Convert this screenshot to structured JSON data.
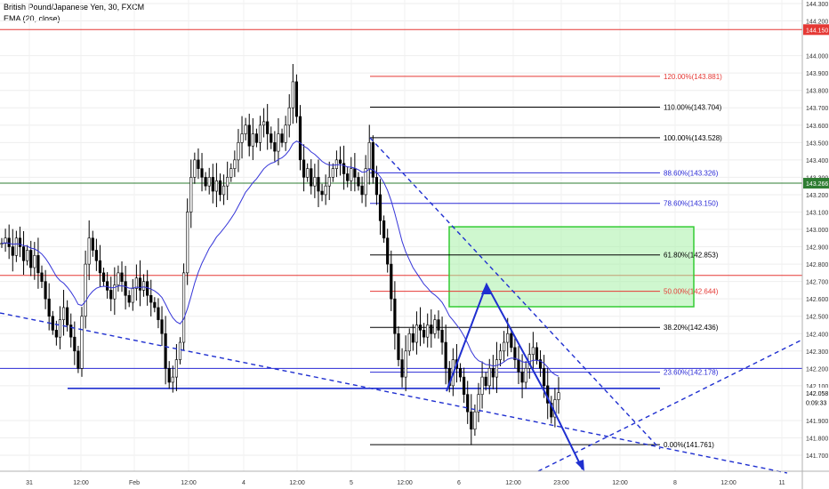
{
  "header": {
    "symbol_title": "British Pound/Japanese Yen, 30, FXCM",
    "indicator_label": "EMA (20, close)"
  },
  "colors": {
    "up_candle": "#ffffff",
    "candle_outline": "#000000",
    "ema": "#3535d8",
    "fib_red": "#e53935",
    "fib_black": "#000000",
    "fib_blue": "#2b2bd6",
    "resistance_red": "#e53935",
    "support_green": "#2e7d32",
    "target_box_fill": "#a8f0a8",
    "target_box_stroke": "#33cc33",
    "trend_blue": "#1f2fd0",
    "price_tag_red": "#e53935",
    "price_tag_green": "#2e7d32"
  },
  "chart_data": {
    "type": "candlestick",
    "title": "British Pound/Japanese Yen, 30, FXCM",
    "indicator": "EMA (20, close)",
    "ylim": [
      141.65,
      144.32
    ],
    "y_ticks": [
      "144.300",
      "144.200",
      "144.000",
      "143.900",
      "143.800",
      "143.700",
      "143.600",
      "143.500",
      "143.400",
      "143.300",
      "143.200",
      "143.100",
      "143.000",
      "142.900",
      "142.800",
      "142.700",
      "142.600",
      "142.500",
      "142.400",
      "142.300",
      "142.200",
      "142.100",
      "141.900",
      "141.800",
      "141.700"
    ],
    "x_ticks": [
      "31",
      "12:00",
      "Feb",
      "12:00",
      "4",
      "12:00",
      "5",
      "12:00",
      "6",
      "12:00",
      "23:00",
      "12:00",
      "8",
      "12:00",
      "11"
    ],
    "price_tags": [
      {
        "label": "144.150",
        "value": 144.15,
        "color": "red"
      },
      {
        "label": "143.266",
        "value": 143.266,
        "color": "green"
      },
      {
        "label": "142.058",
        "value": 142.058,
        "color": "white"
      },
      {
        "label": "0:09:33",
        "value": 142.005,
        "color": "white"
      }
    ],
    "horizontal_lines": [
      {
        "value": 144.15,
        "color": "red"
      },
      {
        "value": 143.266,
        "color": "green"
      },
      {
        "value": 142.735,
        "color": "red"
      },
      {
        "value": 142.2,
        "color": "blue"
      },
      {
        "value": 142.085,
        "color": "blue"
      }
    ],
    "fib_levels": [
      {
        "label": "120.00%(143.881)",
        "value": 143.881,
        "color": "red"
      },
      {
        "label": "110.00%(143.704)",
        "value": 143.704,
        "color": "black"
      },
      {
        "label": "100.00%(143.528)",
        "value": 143.528,
        "color": "black"
      },
      {
        "label": "88.60%(143.326)",
        "value": 143.326,
        "color": "blue"
      },
      {
        "label": "78.60%(143.150)",
        "value": 143.15,
        "color": "blue"
      },
      {
        "label": "61.80%(142.853)",
        "value": 142.853,
        "color": "black"
      },
      {
        "label": "50.00%(142.644)",
        "value": 142.644,
        "color": "red"
      },
      {
        "label": "38.20%(142.436)",
        "value": 142.436,
        "color": "black"
      },
      {
        "label": "23.60%(142.178)",
        "value": 142.178,
        "color": "blue"
      },
      {
        "label": "0.00%(141.761)",
        "value": 141.761,
        "color": "black"
      }
    ],
    "target_zone": [
      142.555,
      143.015
    ],
    "closes": [
      142.92,
      142.95,
      142.9,
      142.85,
      142.95,
      142.9,
      142.82,
      142.88,
      142.78,
      142.85,
      142.75,
      142.7,
      142.6,
      142.5,
      142.42,
      142.38,
      142.48,
      142.55,
      142.45,
      142.38,
      142.3,
      142.2,
      142.5,
      142.8,
      142.95,
      142.88,
      142.82,
      142.75,
      142.7,
      142.65,
      142.6,
      142.68,
      142.75,
      142.7,
      142.62,
      142.58,
      142.66,
      142.72,
      142.65,
      142.7,
      142.62,
      142.58,
      142.55,
      142.48,
      142.4,
      142.2,
      142.12,
      142.15,
      142.25,
      142.35,
      142.75,
      143.1,
      143.3,
      143.4,
      143.35,
      143.3,
      143.25,
      143.3,
      143.22,
      143.28,
      143.2,
      143.25,
      143.3,
      143.35,
      143.4,
      143.5,
      143.55,
      143.6,
      143.48,
      143.55,
      143.5,
      143.6,
      143.62,
      143.55,
      143.5,
      143.45,
      143.55,
      143.5,
      143.6,
      143.7,
      143.85,
      143.65,
      143.4,
      143.3,
      143.35,
      143.25,
      143.3,
      143.22,
      143.2,
      143.25,
      143.3,
      143.35,
      143.4,
      143.38,
      143.32,
      143.28,
      143.35,
      143.3,
      143.25,
      143.2,
      143.35,
      143.5,
      143.3,
      143.2,
      143.05,
      142.95,
      142.8,
      142.6,
      142.4,
      142.25,
      142.15,
      142.3,
      142.4,
      142.35,
      142.45,
      142.42,
      142.38,
      142.45,
      142.4,
      142.48,
      142.42,
      142.35,
      142.2,
      142.1,
      142.25,
      142.2,
      142.15,
      142.05,
      141.95,
      141.85,
      141.95,
      142.05,
      142.15,
      142.1,
      142.2,
      142.15,
      142.25,
      142.3,
      142.35,
      142.4,
      142.32,
      142.25,
      142.18,
      142.12,
      142.2,
      142.28,
      142.32,
      142.25,
      142.2,
      142.1,
      142.0,
      141.92,
      142.02,
      142.06
    ]
  }
}
